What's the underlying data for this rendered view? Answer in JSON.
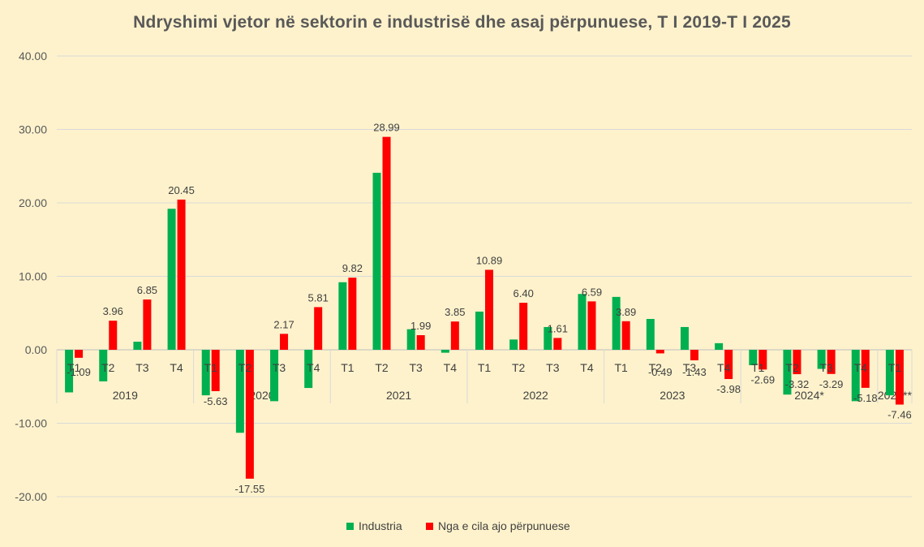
{
  "chart_data": {
    "type": "bar",
    "title": "Ndryshimi vjetor në sektorin e industrisë dhe asaj përpunuese, T I 2019-T I 2025",
    "xlabel": "",
    "ylabel": "",
    "ylim": [
      -20,
      40
    ],
    "yticks": [
      "40.00",
      "30.00",
      "20.00",
      "10.00",
      "0.00",
      "-10.00",
      "-20.00"
    ],
    "grid": true,
    "legend_position": "bottom",
    "groups": [
      {
        "label": "2019",
        "quarters": [
          "T1",
          "T2",
          "T3",
          "T4"
        ]
      },
      {
        "label": "2020",
        "quarters": [
          "T1",
          "T2",
          "T3",
          "T4"
        ]
      },
      {
        "label": "2021",
        "quarters": [
          "T1",
          "T2",
          "T3",
          "T4"
        ]
      },
      {
        "label": "2022",
        "quarters": [
          "T1",
          "T2",
          "T3",
          "T4"
        ]
      },
      {
        "label": "2023",
        "quarters": [
          "T1",
          "T2",
          "T3",
          "T4"
        ]
      },
      {
        "label": "2024*",
        "quarters": [
          "T1",
          "T2",
          "T3",
          "T4"
        ]
      },
      {
        "label": "2025**",
        "quarters": [
          "T1"
        ]
      }
    ],
    "series": [
      {
        "name": "Industria",
        "color": "#00b050",
        "values": [
          -5.8,
          -4.3,
          1.1,
          19.2,
          -6.2,
          -11.3,
          -7.0,
          -5.2,
          9.2,
          24.1,
          2.8,
          -0.4,
          5.2,
          1.4,
          3.1,
          7.6,
          7.2,
          4.2,
          3.1,
          0.9,
          -2.1,
          -6.1,
          -2.6,
          -7.0,
          -6.2
        ]
      },
      {
        "name": "Nga e cila ajo përpunuese",
        "color": "#ff0000",
        "values": [
          -1.09,
          3.96,
          6.85,
          20.45,
          -5.63,
          -17.55,
          2.17,
          5.81,
          9.82,
          28.99,
          1.99,
          3.85,
          10.89,
          6.4,
          1.61,
          6.59,
          3.89,
          -0.49,
          -1.43,
          -3.98,
          -2.69,
          -3.32,
          -3.29,
          -5.18,
          -7.46
        ],
        "labels": [
          "-1.09",
          "3.96",
          "6.85",
          "20.45",
          "-5.63",
          "-17.55",
          "2.17",
          "5.81",
          "9.82",
          "28.99",
          "1.99",
          "3.85",
          "10.89",
          "6.40",
          "1.61",
          "6.59",
          "3.89",
          "-0.49",
          "-1.43",
          "-3.98",
          "-2.69",
          "-3.32",
          "-3.29",
          "-5.18",
          "-7.46"
        ]
      }
    ]
  }
}
